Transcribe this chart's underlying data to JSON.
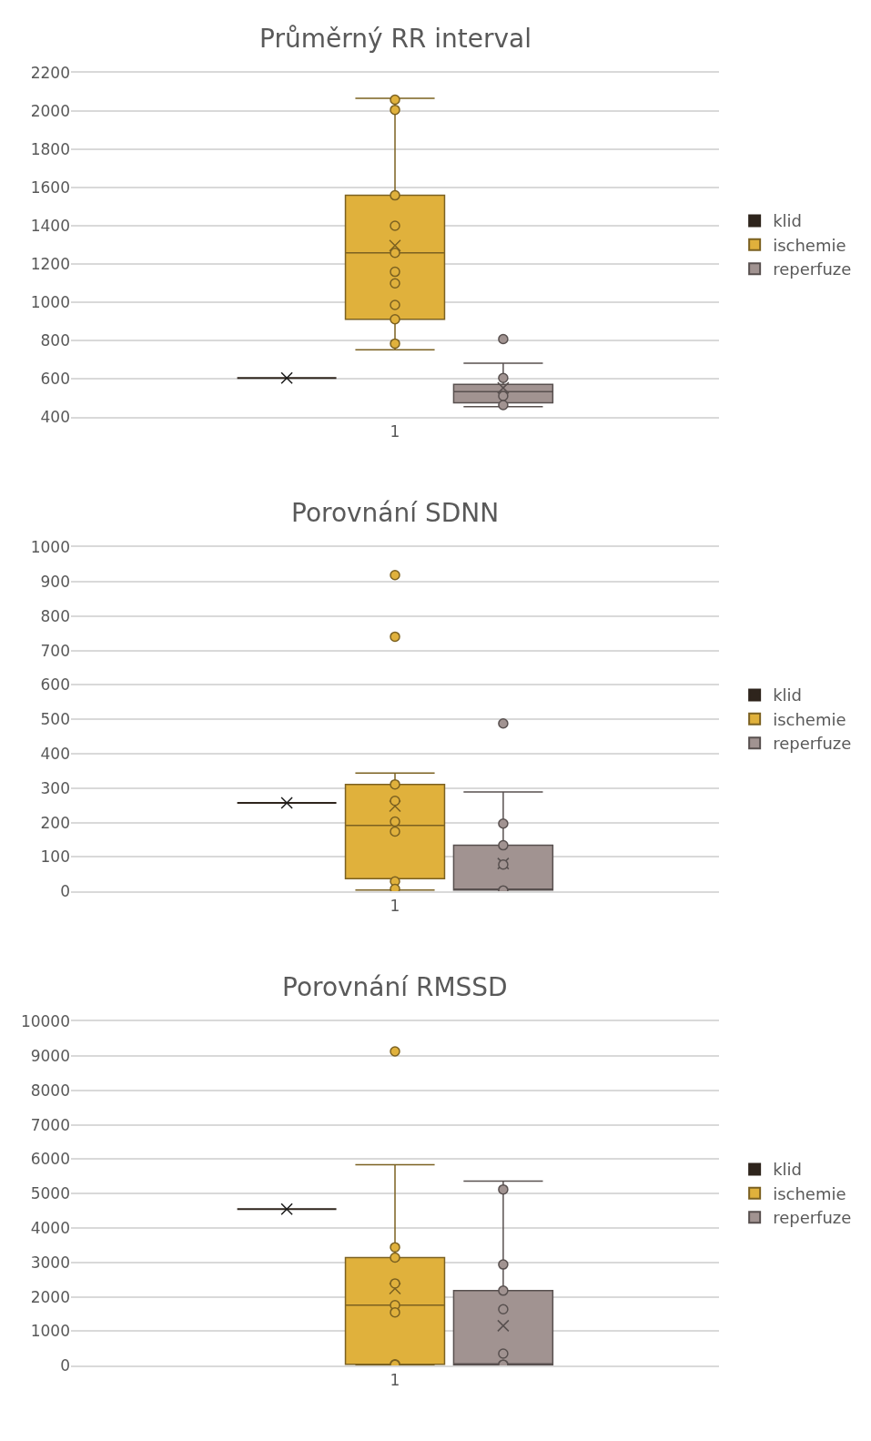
{
  "chart_data": [
    {
      "type": "box",
      "title": "Průměrný RR interval",
      "categories": [
        "1"
      ],
      "ylim": [
        400,
        2200
      ],
      "yticks": [
        400,
        600,
        800,
        1000,
        1200,
        1400,
        1600,
        1800,
        2000,
        2200
      ],
      "grid": "y",
      "legend": "right",
      "series": [
        {
          "name": "klid",
          "color": "#2e241c",
          "boxes": [
            {
              "low": 605,
              "q1": 605,
              "median": 605,
              "q3": 605,
              "high": 605,
              "mean": 605
            }
          ]
        },
        {
          "name": "ischemie",
          "color": "#e0b13c",
          "boxes": [
            {
              "low": 752,
              "q1": 912,
              "median": 1259,
              "q3": 1560,
              "high": 2067,
              "mean": 1297,
              "outliers": [
                2060,
                2007,
                1560,
                1401,
                1259,
                1160,
                1100,
                987,
                912,
                785
              ]
            }
          ]
        },
        {
          "name": "reperfuze",
          "color": "#a19391",
          "boxes": [
            {
              "low": 455,
              "q1": 475,
              "median": 533,
              "q3": 572,
              "high": 682,
              "mean": 553,
              "outliers": [
                808,
                605,
                511,
                463
              ]
            }
          ]
        }
      ]
    },
    {
      "type": "box",
      "title": "Porovnání SDNN",
      "categories": [
        "1"
      ],
      "ylim": [
        0,
        1000
      ],
      "yticks": [
        0,
        100,
        200,
        300,
        400,
        500,
        600,
        700,
        800,
        900,
        1000
      ],
      "grid": "y",
      "legend": "right",
      "series": [
        {
          "name": "klid",
          "color": "#2e241c",
          "boxes": [
            {
              "low": 257,
              "q1": 257,
              "median": 257,
              "q3": 257,
              "high": 257,
              "mean": 257
            }
          ]
        },
        {
          "name": "ischemie",
          "color": "#e0b13c",
          "boxes": [
            {
              "low": 4,
              "q1": 37,
              "median": 192,
              "q3": 311,
              "high": 344,
              "mean": 248,
              "outliers": [
                919,
                740,
                311,
                263,
                203,
                174,
                29,
                7
              ]
            }
          ]
        },
        {
          "name": "reperfuze",
          "color": "#a19391",
          "boxes": [
            {
              "low": 4,
              "q1": 4,
              "median": 4,
              "q3": 134,
              "high": 289,
              "mean": 81,
              "outliers": [
                488,
                197,
                134,
                78,
                3
              ]
            }
          ]
        }
      ]
    },
    {
      "type": "box",
      "title": "Porovnání RMSSD",
      "categories": [
        "1"
      ],
      "ylim": [
        0,
        10000
      ],
      "yticks": [
        0,
        1000,
        2000,
        3000,
        4000,
        5000,
        6000,
        7000,
        8000,
        9000,
        10000
      ],
      "grid": "y",
      "legend": "right",
      "series": [
        {
          "name": "klid",
          "color": "#2e241c",
          "boxes": [
            {
              "low": 4550,
              "q1": 4550,
              "median": 4550,
              "q3": 4550,
              "high": 4550,
              "mean": 4550
            }
          ]
        },
        {
          "name": "ischemie",
          "color": "#e0b13c",
          "boxes": [
            {
              "low": 30,
              "q1": 40,
              "median": 1760,
              "q3": 3140,
              "high": 5840,
              "mean": 2240,
              "outliers": [
                9130,
                3440,
                3140,
                2390,
                1760,
                1550,
                40,
                30
              ]
            }
          ]
        },
        {
          "name": "reperfuze",
          "color": "#a19391",
          "boxes": [
            {
              "low": 30,
              "q1": 30,
              "median": 30,
              "q3": 2180,
              "high": 5360,
              "mean": 1160,
              "outliers": [
                5120,
                2940,
                2180,
                1640,
                350,
                30,
                30
              ]
            }
          ]
        }
      ]
    }
  ]
}
